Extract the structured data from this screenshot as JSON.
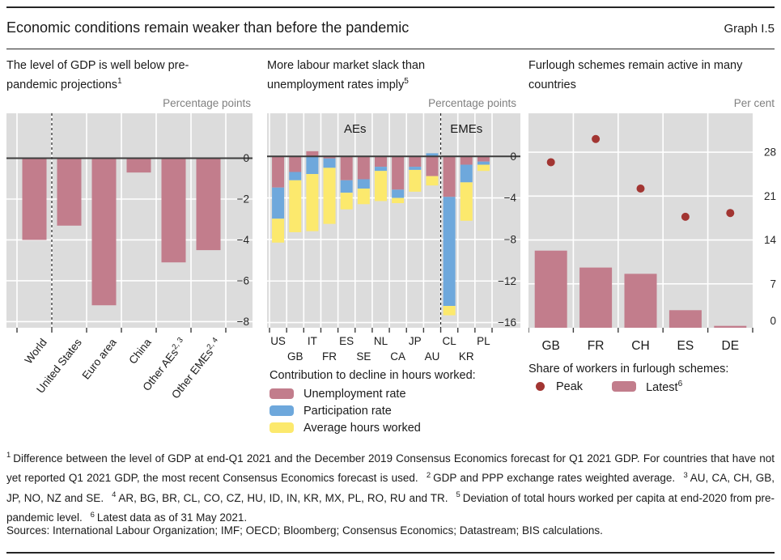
{
  "header": {
    "title": "Economic conditions remain weaker than before the pandemic",
    "graph_label": "Graph I.5"
  },
  "colors": {
    "pink": "#c27d8c",
    "blue": "#6ea8dc",
    "yellow": "#fce96d",
    "dark_red": "#a23532",
    "plot_bg": "#dcdcdc",
    "zero_line": "#3d3d3d",
    "grid": "#ffffff",
    "axis_text": "#262626",
    "muted_text": "#808080"
  },
  "panels": [
    {
      "title": "The level of GDP is well below pre-pandemic projections",
      "title_sup": "1",
      "unit": "Percentage points"
    },
    {
      "title": "More labour market slack than unemployment rates imply",
      "title_sup": "5",
      "unit": "Percentage points",
      "legend_title": "Contribution to decline in hours worked:"
    },
    {
      "title": "Furlough schemes remain active in many countries",
      "title_sup": "",
      "unit": "Per cent",
      "legend_title": "Share of workers in furlough schemes:"
    }
  ],
  "chart_data": [
    {
      "type": "bar",
      "title": "The level of GDP is well below pre-pandemic projections",
      "ylabel": "Percentage points",
      "categories": [
        "World",
        "United States",
        "Euro area",
        "China",
        "Other AEs",
        "Other EMEs"
      ],
      "category_sups": [
        "",
        "",
        "",
        "",
        "2, 3",
        "2, 4"
      ],
      "values": [
        -4.0,
        -3.3,
        -7.2,
        -0.7,
        -5.1,
        -4.5
      ],
      "ylim": [
        -8.3,
        2.2
      ],
      "yticks": [
        0,
        -2,
        -4,
        -6,
        -8
      ],
      "separator_after_index": 0,
      "bar_color": "#c27d8c"
    },
    {
      "type": "bar",
      "subtype": "stacked",
      "title": "More labour market slack than unemployment rates imply",
      "ylabel": "Percentage points",
      "categories": [
        "US",
        "GB",
        "IT",
        "FR",
        "ES",
        "SE",
        "NL",
        "CA",
        "JP",
        "AU",
        "CL",
        "KR",
        "PL"
      ],
      "series": [
        {
          "name": "Unemployment rate",
          "color": "#c27d8c",
          "values": [
            -3.0,
            -1.5,
            0.5,
            -0.2,
            -2.3,
            -2.2,
            -1.0,
            -3.2,
            -1.0,
            -1.9,
            -3.9,
            -0.8,
            -0.5
          ]
        },
        {
          "name": "Participation rate",
          "color": "#6ea8dc",
          "values": [
            -3.0,
            -0.8,
            -1.7,
            -0.9,
            -1.2,
            -0.9,
            -0.4,
            -0.8,
            -0.3,
            0.3,
            -10.5,
            -1.7,
            -0.3
          ]
        },
        {
          "name": "Average hours worked",
          "color": "#fce96d",
          "values": [
            -2.3,
            -5.0,
            -5.5,
            -5.4,
            -1.6,
            -1.5,
            -2.9,
            -0.5,
            -2.1,
            -0.9,
            -0.9,
            -3.7,
            -0.6
          ]
        }
      ],
      "ylim": [
        -16.5,
        4.15
      ],
      "yticks": [
        0,
        -4,
        -8,
        -12,
        -16
      ],
      "separator_after_index": 9,
      "group_labels": [
        {
          "text": "AEs"
        },
        {
          "text": "EMEs"
        }
      ],
      "legend_title": "Contribution to decline in hours worked:"
    },
    {
      "type": "bar",
      "subtype": "bar_and_scatter",
      "title": "Furlough schemes remain active in many countries",
      "ylabel": "Per cent",
      "categories": [
        "GB",
        "FR",
        "CH",
        "ES",
        "DE"
      ],
      "series": [
        {
          "name": "Peak",
          "marker": "dot",
          "color": "#a23532",
          "values": [
            26.4,
            30.1,
            22.2,
            17.7,
            18.3
          ]
        },
        {
          "name": "Latest",
          "sup": "6",
          "marker": "bar",
          "color": "#c27d8c",
          "values": [
            12.3,
            9.6,
            8.6,
            2.8,
            0.3
          ]
        }
      ],
      "ylim": [
        0,
        34.2
      ],
      "yticks": [
        0,
        7,
        14,
        21,
        28
      ],
      "legend_title": "Share of workers in furlough schemes:"
    }
  ],
  "footnotes": [
    {
      "sup": "1",
      "text": "Difference between the level of GDP at end-Q1 2021 and the December 2019 Consensus Economics forecast for Q1 2021 GDP. For countries that have not yet reported Q1 2021 GDP, the most recent Consensus Economics forecast is used."
    },
    {
      "sup": "2",
      "text": "GDP and PPP exchange rates weighted average."
    },
    {
      "sup": "3",
      "text": "AU, CA, CH, GB, JP, NO, NZ and SE."
    },
    {
      "sup": "4",
      "text": "AR, BG, BR, CL, CO, CZ, HU, ID, IN, KR, MX, PL, RO, RU and TR."
    },
    {
      "sup": "5",
      "text": "Deviation of total hours worked per capita at end-2020 from pre-pandemic level."
    },
    {
      "sup": "6",
      "text": "Latest data as of 31 May 2021."
    }
  ],
  "sources": "Sources: International Labour Organization; IMF; OECD; Bloomberg; Consensus Economics; Datastream; BIS calculations."
}
